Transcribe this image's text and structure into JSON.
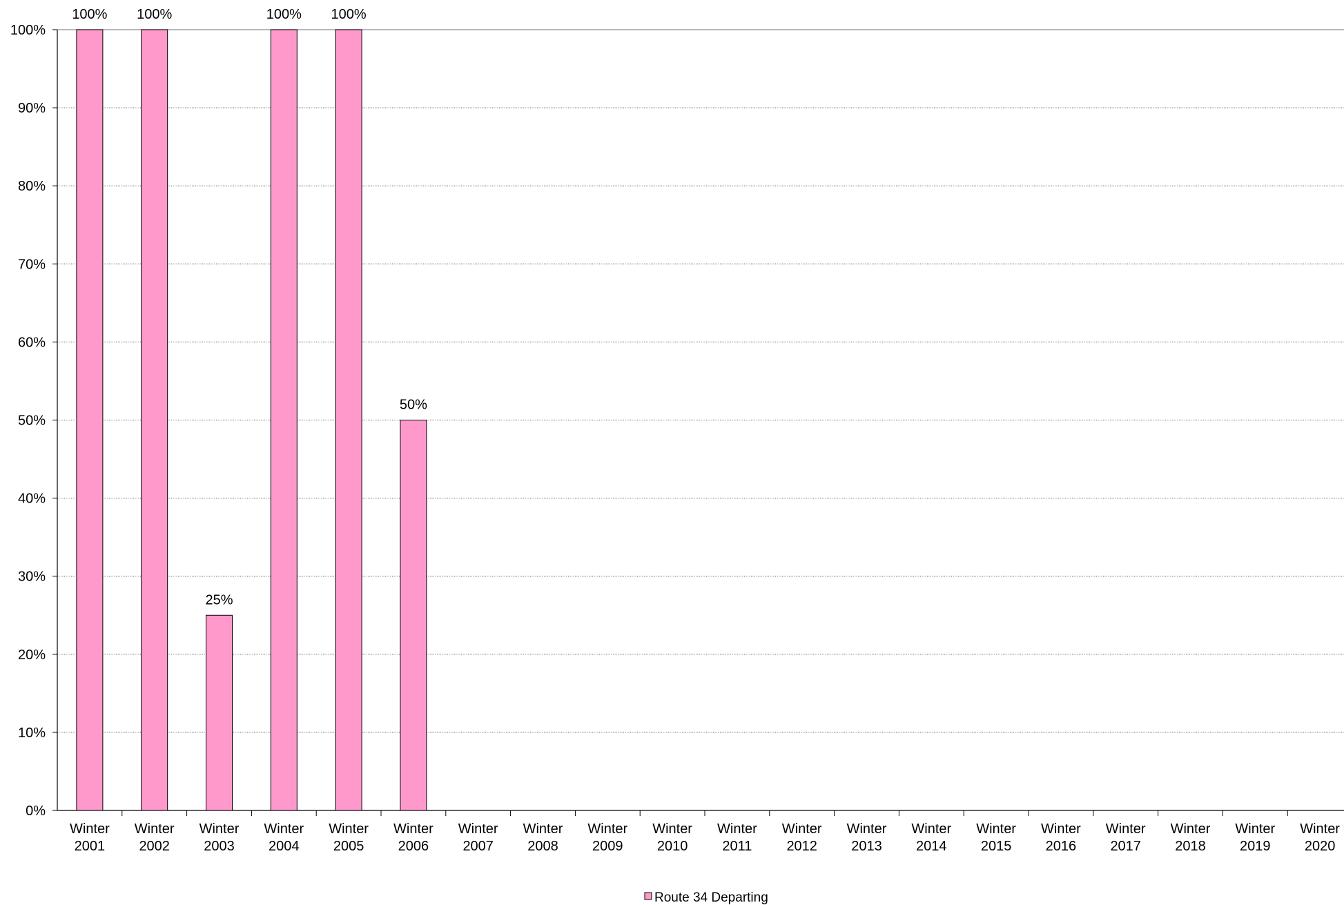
{
  "chart_data": {
    "type": "bar",
    "categories": [
      [
        "Winter",
        "2001"
      ],
      [
        "Winter",
        "2002"
      ],
      [
        "Winter",
        "2003"
      ],
      [
        "Winter",
        "2004"
      ],
      [
        "Winter",
        "2005"
      ],
      [
        "Winter",
        "2006"
      ],
      [
        "Winter",
        "2007"
      ],
      [
        "Winter",
        "2008"
      ],
      [
        "Winter",
        "2009"
      ],
      [
        "Winter",
        "2010"
      ],
      [
        "Winter",
        "2011"
      ],
      [
        "Winter",
        "2012"
      ],
      [
        "Winter",
        "2013"
      ],
      [
        "Winter",
        "2014"
      ],
      [
        "Winter",
        "2015"
      ],
      [
        "Winter",
        "2016"
      ],
      [
        "Winter",
        "2017"
      ],
      [
        "Winter",
        "2018"
      ],
      [
        "Winter",
        "2019"
      ],
      [
        "Winter",
        "2020"
      ]
    ],
    "series": [
      {
        "name": "Route 34 Departing",
        "color": "#ff99cc",
        "values": [
          100,
          100,
          25,
          100,
          100,
          50,
          null,
          null,
          null,
          null,
          null,
          null,
          null,
          null,
          null,
          null,
          null,
          null,
          null,
          null
        ],
        "data_labels": [
          "100%",
          "100%",
          "25%",
          "100%",
          "100%",
          "50%"
        ]
      }
    ],
    "ylim": [
      0,
      100
    ],
    "y_ticks": [
      "0%",
      "10%",
      "20%",
      "30%",
      "40%",
      "50%",
      "60%",
      "70%",
      "80%",
      "90%",
      "100%"
    ],
    "grid": true,
    "legend": "bottom-center",
    "title": "",
    "xlabel": "",
    "ylabel": ""
  }
}
